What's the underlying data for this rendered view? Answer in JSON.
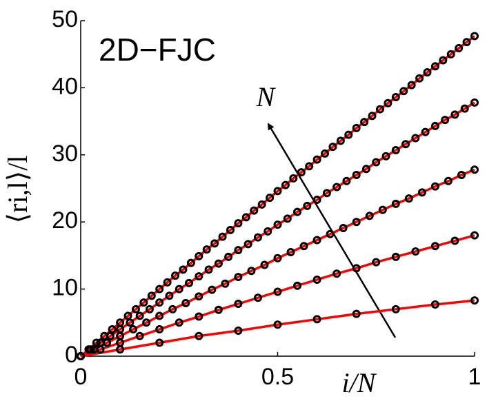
{
  "chart_data": {
    "type": "line",
    "title": "2D−FJC",
    "annotation": "N",
    "x_label": "i/N",
    "y_label": "⟨ri,l⟩/l",
    "xlim": [
      0,
      1
    ],
    "ylim": [
      0,
      50
    ],
    "xticks": [
      0,
      0.5,
      1
    ],
    "yticks": [
      0,
      10,
      20,
      30,
      40,
      50
    ],
    "marker_color": "#000000",
    "series": [
      {
        "color": "#ff0000",
        "x": [
          0,
          0.1,
          0.2,
          0.3,
          0.4,
          0.5,
          0.6,
          0.7,
          0.8,
          0.9,
          1
        ],
        "values": [
          0,
          1.0,
          2.0,
          3.0,
          3.8,
          4.7,
          5.5,
          6.3,
          7.0,
          7.7,
          8.3
        ]
      },
      {
        "color": "#ff0000",
        "x": [
          0,
          0.05,
          0.1,
          0.15,
          0.2,
          0.25,
          0.3,
          0.35,
          0.4,
          0.45,
          0.5,
          0.55,
          0.6,
          0.65,
          0.7,
          0.75,
          0.8,
          0.85,
          0.9,
          0.95,
          1
        ],
        "values": [
          0,
          1.0,
          2.0,
          3.0,
          4.0,
          5.0,
          5.9,
          6.9,
          7.8,
          8.7,
          9.6,
          10.5,
          11.4,
          12.3,
          13.1,
          14.0,
          14.8,
          15.6,
          16.4,
          17.2,
          18.0
        ]
      },
      {
        "color": "#ff0000",
        "x": [
          0,
          0.0333,
          0.0667,
          0.1,
          0.1333,
          0.1667,
          0.2,
          0.2333,
          0.2667,
          0.3,
          0.3333,
          0.3667,
          0.4,
          0.4333,
          0.4667,
          0.5,
          0.5333,
          0.5667,
          0.6,
          0.6333,
          0.6667,
          0.7,
          0.7333,
          0.7667,
          0.8,
          0.8333,
          0.8667,
          0.9,
          0.9333,
          0.9667,
          1
        ],
        "values": [
          0,
          1.0,
          2.0,
          3.0,
          4.0,
          5.0,
          6.0,
          7.0,
          7.9,
          8.9,
          9.9,
          10.8,
          11.8,
          12.7,
          13.6,
          14.6,
          15.5,
          16.4,
          17.3,
          18.2,
          19.1,
          20.0,
          20.9,
          21.8,
          22.7,
          23.5,
          24.4,
          25.3,
          26.1,
          27.0,
          27.8
        ]
      },
      {
        "color": "#ff0000",
        "x": [
          0,
          0.025,
          0.05,
          0.075,
          0.1,
          0.125,
          0.15,
          0.175,
          0.2,
          0.225,
          0.25,
          0.275,
          0.3,
          0.325,
          0.35,
          0.375,
          0.4,
          0.425,
          0.45,
          0.475,
          0.5,
          0.525,
          0.55,
          0.575,
          0.6,
          0.625,
          0.65,
          0.675,
          0.7,
          0.725,
          0.75,
          0.775,
          0.8,
          0.825,
          0.85,
          0.875,
          0.9,
          0.925,
          0.95,
          0.975,
          1
        ],
        "values": [
          0,
          1.0,
          2.0,
          3.0,
          4.0,
          5.0,
          6.0,
          7.0,
          8.0,
          9.0,
          10.0,
          10.9,
          11.9,
          12.9,
          13.8,
          14.8,
          15.8,
          16.7,
          17.7,
          18.6,
          19.6,
          20.5,
          21.5,
          22.4,
          23.3,
          24.3,
          25.2,
          26.1,
          27.0,
          27.9,
          28.9,
          29.8,
          30.7,
          31.6,
          32.5,
          33.4,
          34.3,
          35.2,
          36.0,
          36.9,
          37.8
        ]
      },
      {
        "color": "#ff0000",
        "x": [
          0,
          0.02,
          0.04,
          0.06,
          0.08,
          0.1,
          0.12,
          0.14,
          0.16,
          0.18,
          0.2,
          0.22,
          0.24,
          0.26,
          0.28,
          0.3,
          0.32,
          0.34,
          0.36,
          0.38,
          0.4,
          0.42,
          0.44,
          0.46,
          0.48,
          0.5,
          0.52,
          0.54,
          0.56,
          0.58,
          0.6,
          0.62,
          0.64,
          0.66,
          0.68,
          0.7,
          0.72,
          0.74,
          0.76,
          0.78,
          0.8,
          0.82,
          0.84,
          0.86,
          0.88,
          0.9,
          0.92,
          0.94,
          0.96,
          0.98,
          1
        ],
        "values": [
          0,
          1.0,
          2.0,
          3.0,
          4.0,
          5.0,
          6.0,
          7.0,
          8.0,
          9.0,
          10.0,
          11.0,
          12.0,
          12.9,
          13.9,
          14.9,
          15.9,
          16.8,
          17.8,
          18.8,
          19.8,
          20.7,
          21.7,
          22.6,
          23.6,
          24.6,
          25.5,
          26.5,
          27.4,
          28.3,
          29.3,
          30.2,
          31.2,
          32.1,
          33.0,
          34.0,
          34.9,
          35.8,
          36.8,
          37.7,
          38.6,
          39.5,
          40.4,
          41.4,
          42.3,
          43.2,
          44.1,
          45.0,
          45.9,
          46.8,
          47.7
        ]
      }
    ]
  }
}
